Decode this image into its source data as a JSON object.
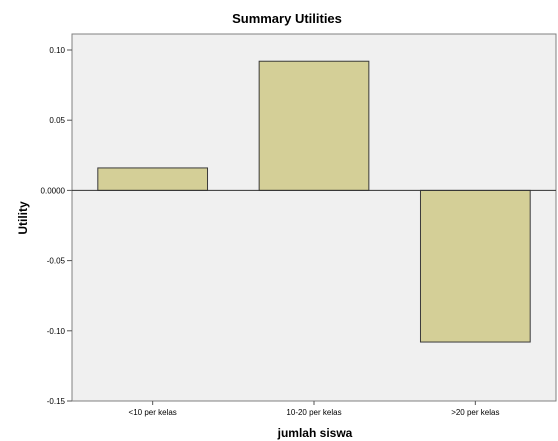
{
  "chart_data": {
    "type": "bar",
    "title": "Summary Utilities",
    "xlabel": "jumlah siswa",
    "ylabel": "Utility",
    "categories": [
      "<10 per kelas",
      "10-20 per kelas",
      ">20 per kelas"
    ],
    "values": [
      0.016,
      0.092,
      -0.108
    ],
    "ylim": [
      -0.15,
      0.11
    ],
    "yticks": [
      0.1,
      0.05,
      0.0,
      -0.05,
      -0.1,
      -0.15
    ],
    "ytick_labels": [
      "0.10",
      "0.05",
      "0.0000",
      "-0.05",
      "-0.10",
      "-0.15"
    ],
    "grid": false,
    "legend": "none",
    "colors": {
      "bar_fill": "#d4cf97",
      "bar_stroke": "#3a3a3a",
      "plot_background": "#f0f0f0",
      "zero_line": "#333333"
    }
  }
}
